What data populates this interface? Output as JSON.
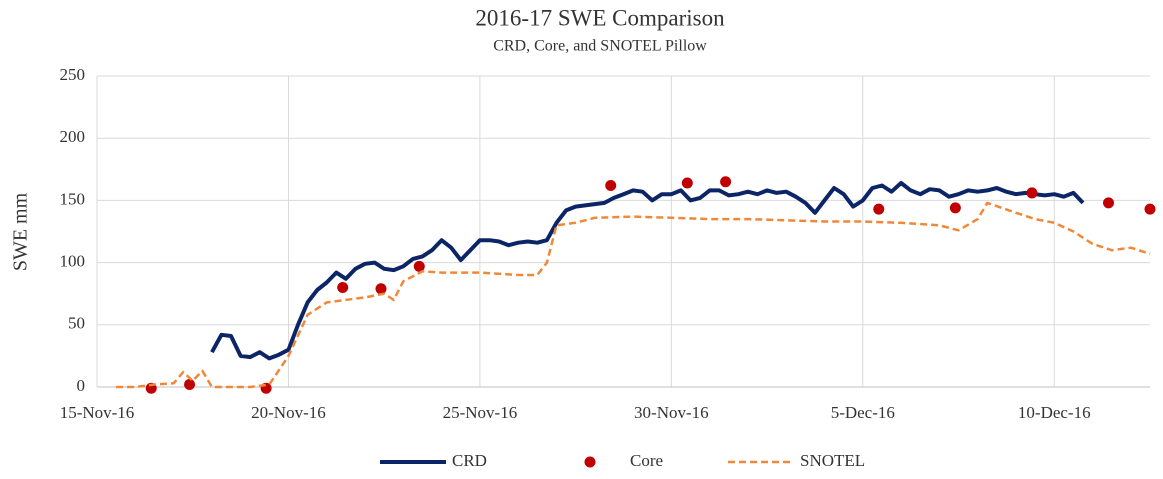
{
  "chart_data": {
    "type": "line",
    "title": "2016-17 SWE Comparison",
    "subtitle": "CRD, Core, and SNOTEL Pillow",
    "y_label": "SWE mm",
    "xlim": [
      "2016-11-15",
      "2016-12-12T12:00"
    ],
    "xticks": [
      {
        "value": "2016-11-15",
        "label": "15-Nov-16"
      },
      {
        "value": "2016-11-20",
        "label": "20-Nov-16"
      },
      {
        "value": "2016-11-25",
        "label": "25-Nov-16"
      },
      {
        "value": "2016-11-30",
        "label": "30-Nov-16"
      },
      {
        "value": "2016-12-05",
        "label": "5-Dec-16"
      },
      {
        "value": "2016-12-10",
        "label": "10-Dec-16"
      }
    ],
    "ylim": [
      0,
      250
    ],
    "yticks": [
      0,
      50,
      100,
      150,
      200,
      250
    ],
    "grid": true,
    "legend": "bottom",
    "series": [
      {
        "name": "CRD",
        "color": "#0b2566",
        "style": "solid",
        "x": [
          "2016-11-18T00:00",
          "2016-11-18T06:00",
          "2016-11-18T12:00",
          "2016-11-18T18:00",
          "2016-11-19T00:00",
          "2016-11-19T06:00",
          "2016-11-19T12:00",
          "2016-11-19T18:00",
          "2016-11-20T00:00",
          "2016-11-20T06:00",
          "2016-11-20T12:00",
          "2016-11-20T18:00",
          "2016-11-21T00:00",
          "2016-11-21T06:00",
          "2016-11-21T12:00",
          "2016-11-21T18:00",
          "2016-11-22T00:00",
          "2016-11-22T06:00",
          "2016-11-22T12:00",
          "2016-11-22T18:00",
          "2016-11-23T00:00",
          "2016-11-23T06:00",
          "2016-11-23T12:00",
          "2016-11-23T18:00",
          "2016-11-24T00:00",
          "2016-11-24T06:00",
          "2016-11-24T12:00",
          "2016-11-24T18:00",
          "2016-11-25T00:00",
          "2016-11-25T06:00",
          "2016-11-25T12:00",
          "2016-11-25T18:00",
          "2016-11-26T00:00",
          "2016-11-26T06:00",
          "2016-11-26T12:00",
          "2016-11-26T18:00",
          "2016-11-27T00:00",
          "2016-11-27T06:00",
          "2016-11-27T12:00",
          "2016-11-27T18:00",
          "2016-11-28T00:00",
          "2016-11-28T06:00",
          "2016-11-28T12:00",
          "2016-11-28T18:00",
          "2016-11-29T00:00",
          "2016-11-29T06:00",
          "2016-11-29T12:00",
          "2016-11-29T18:00",
          "2016-11-30T00:00",
          "2016-11-30T06:00",
          "2016-11-30T12:00",
          "2016-11-30T18:00",
          "2016-12-01T00:00",
          "2016-12-01T06:00",
          "2016-12-01T12:00",
          "2016-12-01T18:00",
          "2016-12-02T00:00",
          "2016-12-02T06:00",
          "2016-12-02T12:00",
          "2016-12-02T18:00",
          "2016-12-03T00:00",
          "2016-12-03T06:00",
          "2016-12-03T12:00",
          "2016-12-03T18:00",
          "2016-12-04T00:00",
          "2016-12-04T06:00",
          "2016-12-04T12:00",
          "2016-12-04T18:00",
          "2016-12-05T00:00",
          "2016-12-05T06:00",
          "2016-12-05T12:00",
          "2016-12-05T18:00",
          "2016-12-06T00:00",
          "2016-12-06T06:00",
          "2016-12-06T12:00",
          "2016-12-06T18:00",
          "2016-12-07T00:00",
          "2016-12-07T06:00",
          "2016-12-07T12:00",
          "2016-12-07T18:00",
          "2016-12-08T00:00",
          "2016-12-08T06:00",
          "2016-12-08T12:00",
          "2016-12-08T18:00",
          "2016-12-09T00:00",
          "2016-12-09T06:00",
          "2016-12-09T12:00",
          "2016-12-09T18:00",
          "2016-12-10T00:00",
          "2016-12-10T06:00",
          "2016-12-10T12:00",
          "2016-12-10T18:00"
        ],
        "values": [
          28,
          42,
          41,
          25,
          24,
          28,
          23,
          26,
          30,
          50,
          68,
          78,
          84,
          92,
          87,
          95,
          99,
          100,
          95,
          94,
          97,
          103,
          105,
          110,
          118,
          112,
          102,
          110,
          118,
          118,
          117,
          114,
          116,
          117,
          116,
          118,
          132,
          142,
          145,
          146,
          147,
          148,
          152,
          155,
          158,
          157,
          150,
          155,
          155,
          158,
          150,
          152,
          158,
          158,
          154,
          155,
          157,
          155,
          158,
          156,
          157,
          153,
          148,
          140,
          150,
          160,
          155,
          145,
          150,
          160,
          162,
          157,
          164,
          158,
          155,
          159,
          158,
          153,
          155,
          158,
          157,
          158,
          160,
          157,
          155,
          156,
          155,
          154,
          155,
          153,
          156,
          148
        ]
      },
      {
        "name": "Core",
        "color": "#c00000",
        "style": "markers",
        "x": [
          "2016-11-16T10:00",
          "2016-11-17T10:00",
          "2016-11-19T10:00",
          "2016-11-21T10:00",
          "2016-11-22T10:00",
          "2016-11-23T10:00",
          "2016-11-28T10:00",
          "2016-11-30T10:00",
          "2016-12-01T10:00",
          "2016-12-05T10:00",
          "2016-12-07T10:00",
          "2016-12-09T10:00",
          "2016-12-11T10:00",
          "2016-12-12T12:00"
        ],
        "values": [
          -1,
          2,
          -1,
          80,
          79,
          97,
          162,
          164,
          165,
          143,
          144,
          156,
          148,
          143
        ]
      },
      {
        "name": "SNOTEL",
        "color": "#f0883a",
        "style": "dashed",
        "x": [
          "2016-11-15T12:00",
          "2016-11-16T00:00",
          "2016-11-16T12:00",
          "2016-11-17T00:00",
          "2016-11-17T06:00",
          "2016-11-17T12:00",
          "2016-11-17T18:00",
          "2016-11-18T00:00",
          "2016-11-19T00:00",
          "2016-11-19T12:00",
          "2016-11-20T00:00",
          "2016-11-20T12:00",
          "2016-11-21T00:00",
          "2016-11-21T12:00",
          "2016-11-22T00:00",
          "2016-11-22T12:00",
          "2016-11-22T18:00",
          "2016-11-23T00:00",
          "2016-11-23T12:00",
          "2016-11-24T00:00",
          "2016-11-25T00:00",
          "2016-11-26T00:00",
          "2016-11-26T12:00",
          "2016-11-26T18:00",
          "2016-11-27T00:00",
          "2016-11-27T12:00",
          "2016-11-28T00:00",
          "2016-11-29T00:00",
          "2016-11-30T00:00",
          "2016-12-01T00:00",
          "2016-12-02T00:00",
          "2016-12-03T00:00",
          "2016-12-04T00:00",
          "2016-12-05T00:00",
          "2016-12-06T00:00",
          "2016-12-07T00:00",
          "2016-12-07T12:00",
          "2016-12-08T00:00",
          "2016-12-08T06:00",
          "2016-12-09T00:00",
          "2016-12-09T12:00",
          "2016-12-10T00:00",
          "2016-12-10T12:00",
          "2016-12-11T00:00",
          "2016-12-11T12:00",
          "2016-12-12T00:00",
          "2016-12-12T12:00"
        ],
        "values": [
          0,
          0,
          2,
          3,
          12,
          5,
          13,
          0,
          0,
          2,
          25,
          58,
          68,
          70,
          72,
          75,
          70,
          85,
          93,
          92,
          92,
          90,
          90,
          100,
          130,
          132,
          136,
          137,
          136,
          135,
          135,
          134,
          133,
          133,
          132,
          130,
          126,
          135,
          148,
          140,
          135,
          132,
          125,
          115,
          110,
          112,
          107
        ]
      }
    ]
  }
}
